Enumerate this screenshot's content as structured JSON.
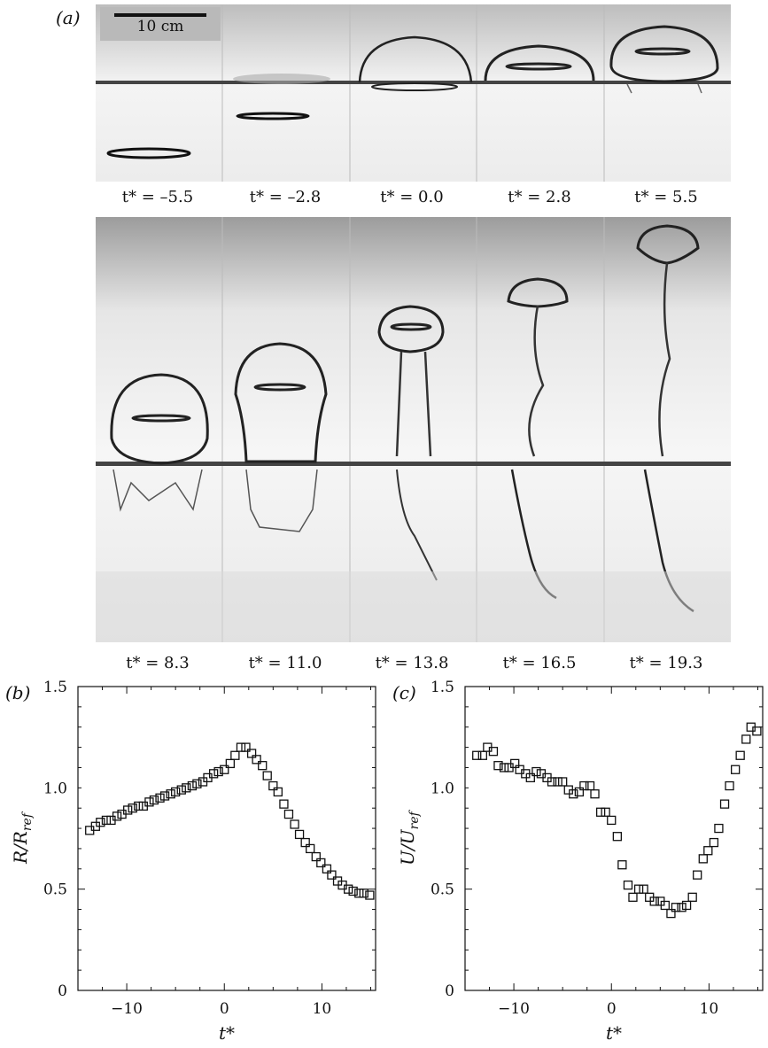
{
  "panel_a": {
    "label": "(a)",
    "scale_bar": "10 cm",
    "top_row_times": [
      "t* = –5.5",
      "t* = –2.8",
      "t* = 0.0",
      "t* = 2.8",
      "t* = 5.5"
    ],
    "bottom_row_times": [
      "t* = 8.3",
      "t* = 11.0",
      "t* = 13.8",
      "t* = 16.5",
      "t* = 19.3"
    ]
  },
  "chart_data": [
    {
      "panel": "(b)",
      "type": "scatter",
      "xlabel": "t*",
      "ylabel": "R/R_ref",
      "xlim": [
        -15,
        15.5
      ],
      "ylim": [
        0,
        1.5
      ],
      "xticks": [
        "−10",
        "0",
        "10"
      ],
      "xtick_values": [
        -10,
        0,
        10
      ],
      "yticks": [
        "0",
        "0.5",
        "1.0",
        "1.5"
      ],
      "ytick_values": [
        0,
        0.5,
        1.0,
        1.5
      ],
      "marker": "open-square",
      "x": [
        -13.8,
        -13.2,
        -12.7,
        -12.1,
        -11.6,
        -11.0,
        -10.5,
        -9.9,
        -9.4,
        -8.8,
        -8.3,
        -7.7,
        -7.2,
        -6.6,
        -6.1,
        -5.5,
        -5.0,
        -4.4,
        -3.9,
        -3.3,
        -2.8,
        -2.2,
        -1.7,
        -1.1,
        -0.6,
        0.0,
        0.6,
        1.1,
        1.7,
        2.2,
        2.8,
        3.3,
        3.9,
        4.4,
        5.0,
        5.5,
        6.1,
        6.6,
        7.2,
        7.7,
        8.3,
        8.8,
        9.4,
        9.9,
        10.5,
        11.0,
        11.6,
        12.1,
        12.7,
        13.2,
        13.8,
        14.3,
        14.9
      ],
      "y": [
        0.79,
        0.81,
        0.83,
        0.84,
        0.84,
        0.86,
        0.87,
        0.89,
        0.9,
        0.91,
        0.91,
        0.93,
        0.94,
        0.95,
        0.96,
        0.97,
        0.98,
        0.99,
        1.0,
        1.01,
        1.02,
        1.03,
        1.05,
        1.07,
        1.08,
        1.09,
        1.12,
        1.16,
        1.2,
        1.2,
        1.17,
        1.14,
        1.11,
        1.06,
        1.01,
        0.98,
        0.92,
        0.87,
        0.82,
        0.77,
        0.73,
        0.7,
        0.66,
        0.63,
        0.6,
        0.57,
        0.54,
        0.52,
        0.5,
        0.49,
        0.48,
        0.48,
        0.47
      ]
    },
    {
      "panel": "(c)",
      "type": "scatter",
      "xlabel": "t*",
      "ylabel": "U/U_ref",
      "xlim": [
        -15,
        15.5
      ],
      "ylim": [
        0,
        1.5
      ],
      "xticks": [
        "−10",
        "0",
        "10"
      ],
      "xtick_values": [
        -10,
        0,
        10
      ],
      "yticks": [
        "0",
        "0.5",
        "1.0",
        "1.5"
      ],
      "ytick_values": [
        0,
        0.5,
        1.0,
        1.5
      ],
      "marker": "open-square",
      "x": [
        -13.8,
        -13.2,
        -12.7,
        -12.1,
        -11.6,
        -11.0,
        -10.5,
        -9.9,
        -9.4,
        -8.8,
        -8.3,
        -7.7,
        -7.2,
        -6.6,
        -6.1,
        -5.5,
        -5.0,
        -4.4,
        -3.9,
        -3.3,
        -2.8,
        -2.2,
        -1.7,
        -1.1,
        -0.6,
        0.0,
        0.6,
        1.1,
        1.7,
        2.2,
        2.8,
        3.3,
        3.9,
        4.4,
        5.0,
        5.5,
        6.1,
        6.6,
        7.2,
        7.7,
        8.3,
        8.8,
        9.4,
        9.9,
        10.5,
        11.0,
        11.6,
        12.1,
        12.7,
        13.2,
        13.8,
        14.3,
        14.9
      ],
      "y": [
        1.16,
        1.16,
        1.2,
        1.18,
        1.11,
        1.1,
        1.1,
        1.12,
        1.09,
        1.07,
        1.05,
        1.08,
        1.07,
        1.05,
        1.03,
        1.03,
        1.03,
        0.99,
        0.97,
        0.98,
        1.01,
        1.01,
        0.97,
        0.88,
        0.88,
        0.84,
        0.76,
        0.62,
        0.52,
        0.46,
        0.5,
        0.5,
        0.46,
        0.44,
        0.44,
        0.42,
        0.38,
        0.41,
        0.41,
        0.42,
        0.46,
        0.57,
        0.65,
        0.69,
        0.73,
        0.8,
        0.92,
        1.01,
        1.09,
        1.16,
        1.24,
        1.3,
        1.28
      ]
    }
  ]
}
